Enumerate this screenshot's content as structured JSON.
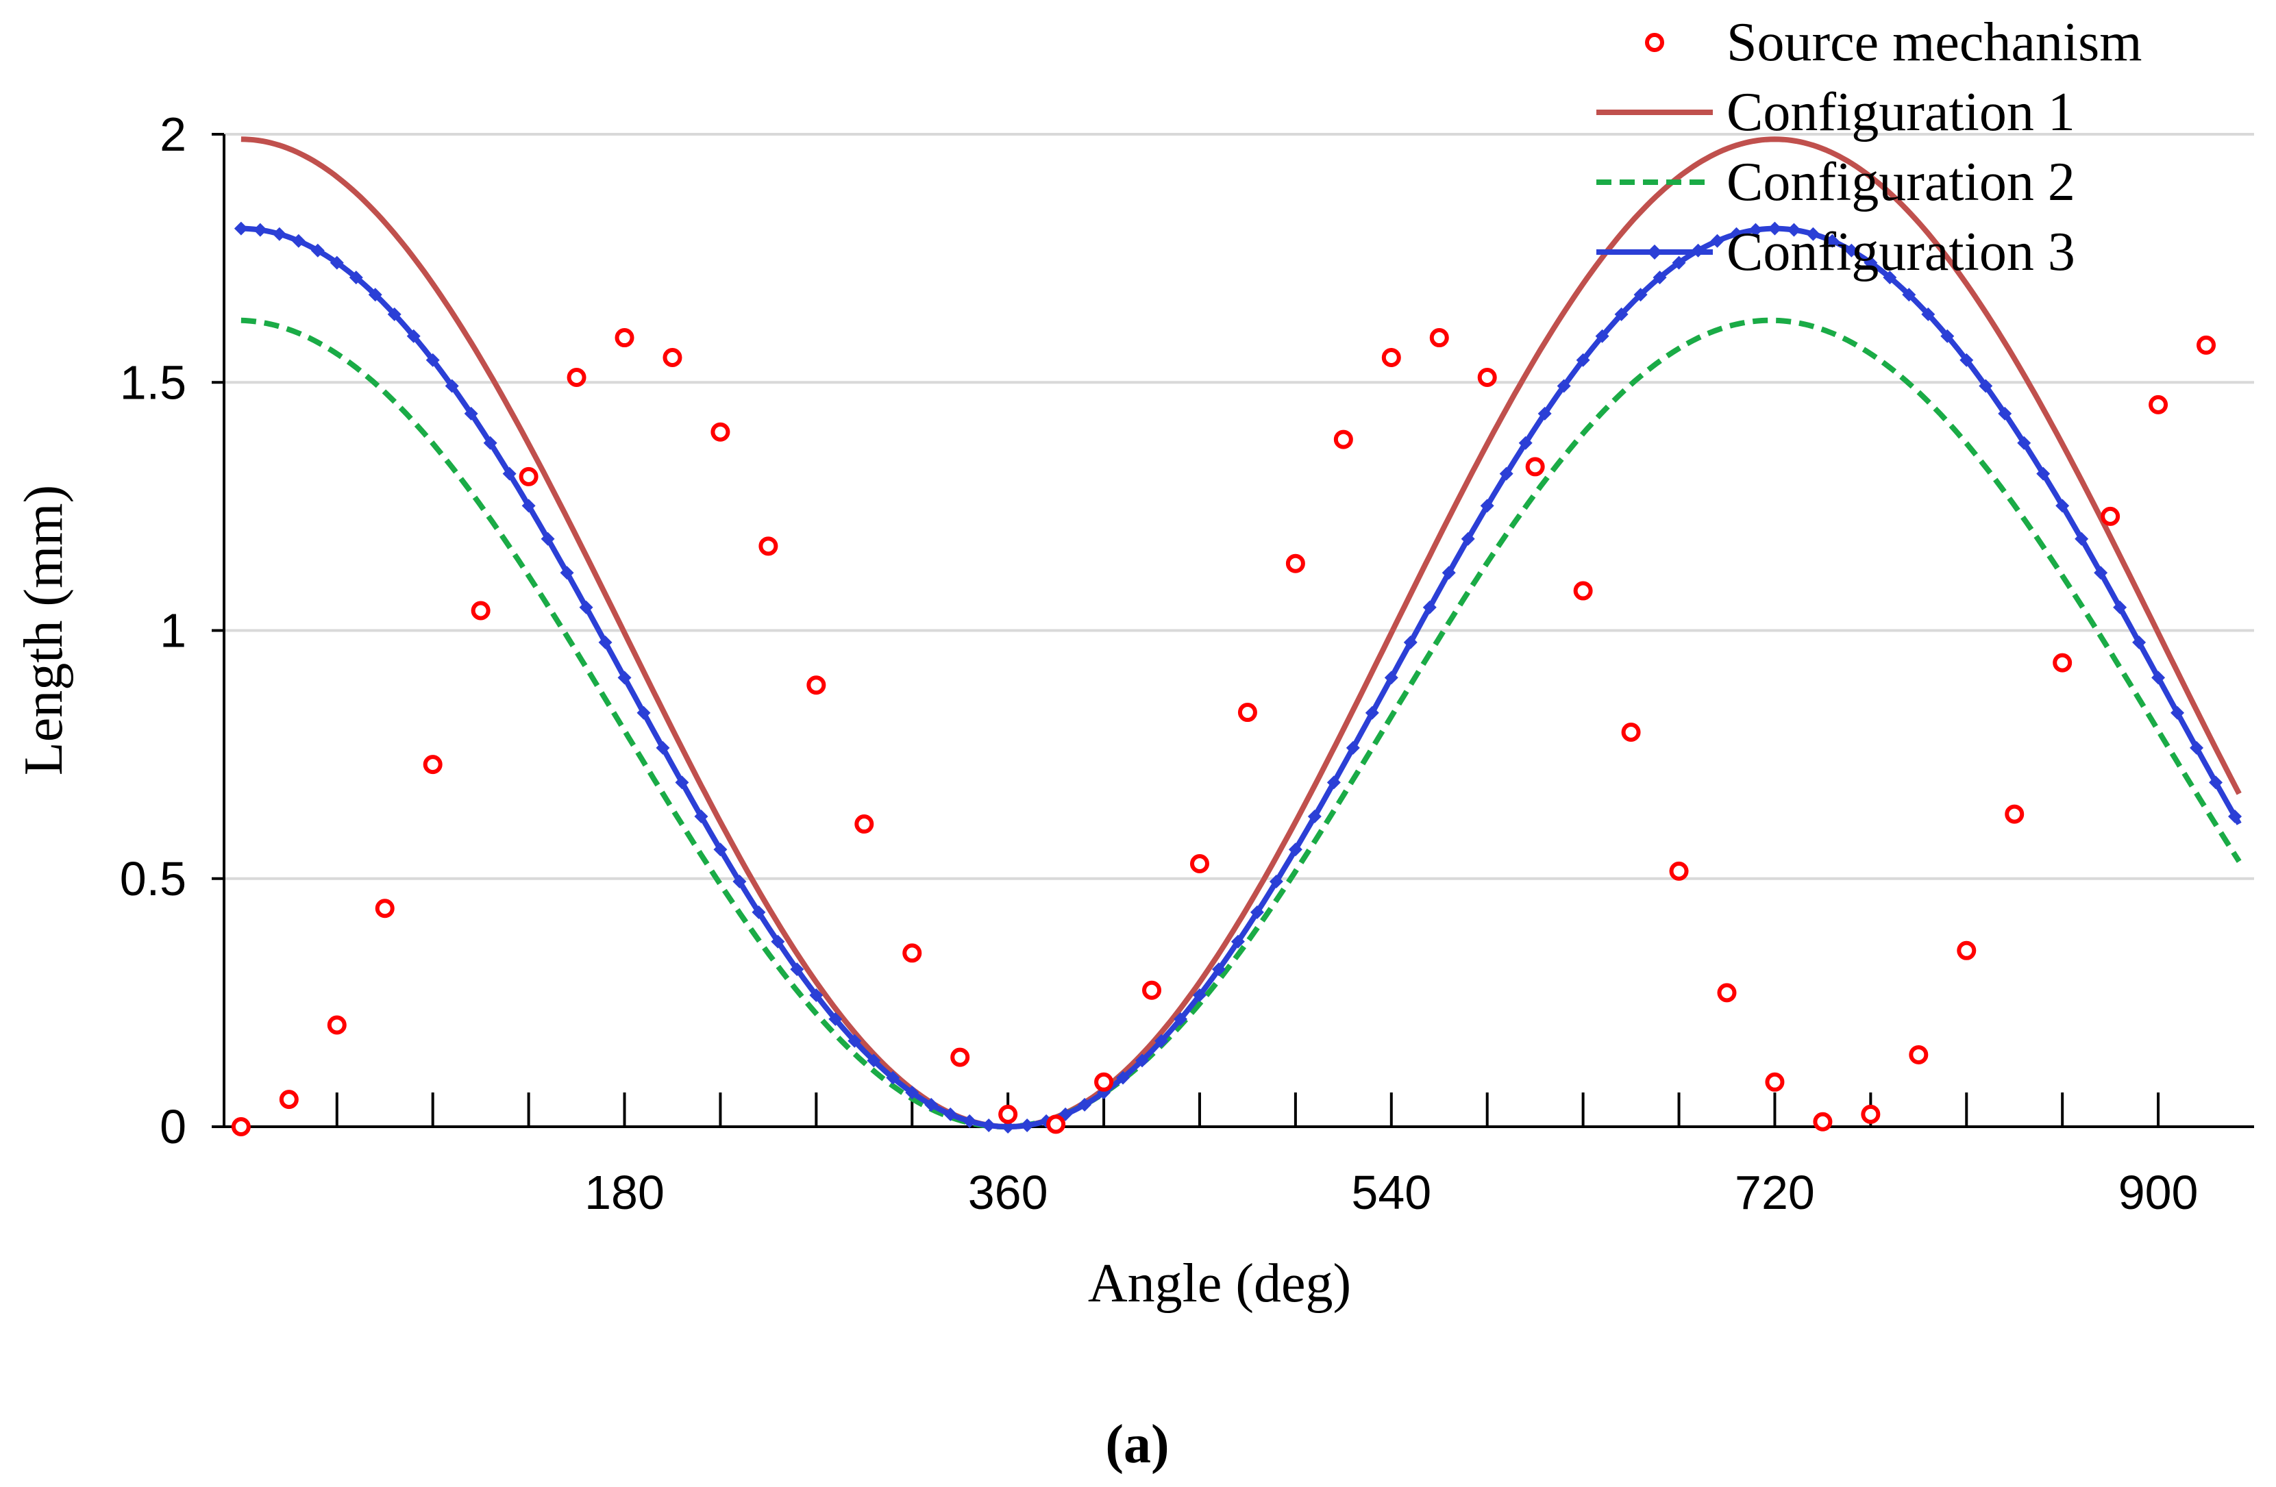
{
  "chart_data": {
    "type": "line",
    "title": "",
    "xlabel": "Angle (deg)",
    "ylabel": "Length (mm)",
    "caption": "(a)",
    "xlim": [
      -8,
      945
    ],
    "ylim": [
      0,
      2
    ],
    "xticks": [
      180,
      360,
      540,
      720,
      900
    ],
    "yticks": [
      0,
      0.5,
      1,
      1.5,
      2
    ],
    "xtick_labels": [
      "180",
      "360",
      "540",
      "720",
      "900"
    ],
    "ytick_labels": [
      "0",
      "0.5",
      "1",
      "1.5",
      "2"
    ],
    "grid": "horizontal",
    "legend_position": "top-right",
    "series": [
      {
        "name": "Source mechanism",
        "style": "markers",
        "color": "#ff0000",
        "x": [
          0,
          22.5,
          45,
          67.5,
          90,
          112.5,
          135,
          157.5,
          180,
          202.5,
          225,
          247.5,
          270,
          292.5,
          315,
          337.5,
          360,
          382.5,
          405,
          427.5,
          450,
          472.5,
          495,
          517.5,
          540,
          562.5,
          585,
          607.5,
          630,
          652.5,
          675,
          697.5,
          720,
          742.5,
          765,
          787.5,
          810,
          832.5,
          855,
          877.5,
          900,
          922.5
        ],
        "y": [
          0,
          0.055,
          0.205,
          0.44,
          0.73,
          1.04,
          1.31,
          1.51,
          1.59,
          1.55,
          1.4,
          1.17,
          0.89,
          0.61,
          0.35,
          0.14,
          0.025,
          0.005,
          0.09,
          0.275,
          0.53,
          0.835,
          1.135,
          1.385,
          1.55,
          1.59,
          1.51,
          1.33,
          1.08,
          0.795,
          0.515,
          0.27,
          0.09,
          0.01,
          0.025,
          0.145,
          0.355,
          0.63,
          0.935,
          1.23,
          1.455,
          1.575
        ]
      },
      {
        "name": "Configuration 1",
        "style": "solid",
        "color": "#c0504d",
        "shape": "cosine",
        "min_x": 360,
        "period": 720,
        "min_y": 0,
        "max_y": 1.99
      },
      {
        "name": "Configuration 2",
        "style": "dashed",
        "color": "#1aab46",
        "shape": "cosine",
        "min_x": 358,
        "period": 720,
        "min_y": 0,
        "max_y": 1.625
      },
      {
        "name": "Configuration 3",
        "style": "solid-with-diamond-markers",
        "color": "#2b3fd6",
        "shape": "cosine",
        "min_x": 360,
        "period": 720,
        "min_y": 0,
        "max_y": 1.81
      }
    ]
  }
}
